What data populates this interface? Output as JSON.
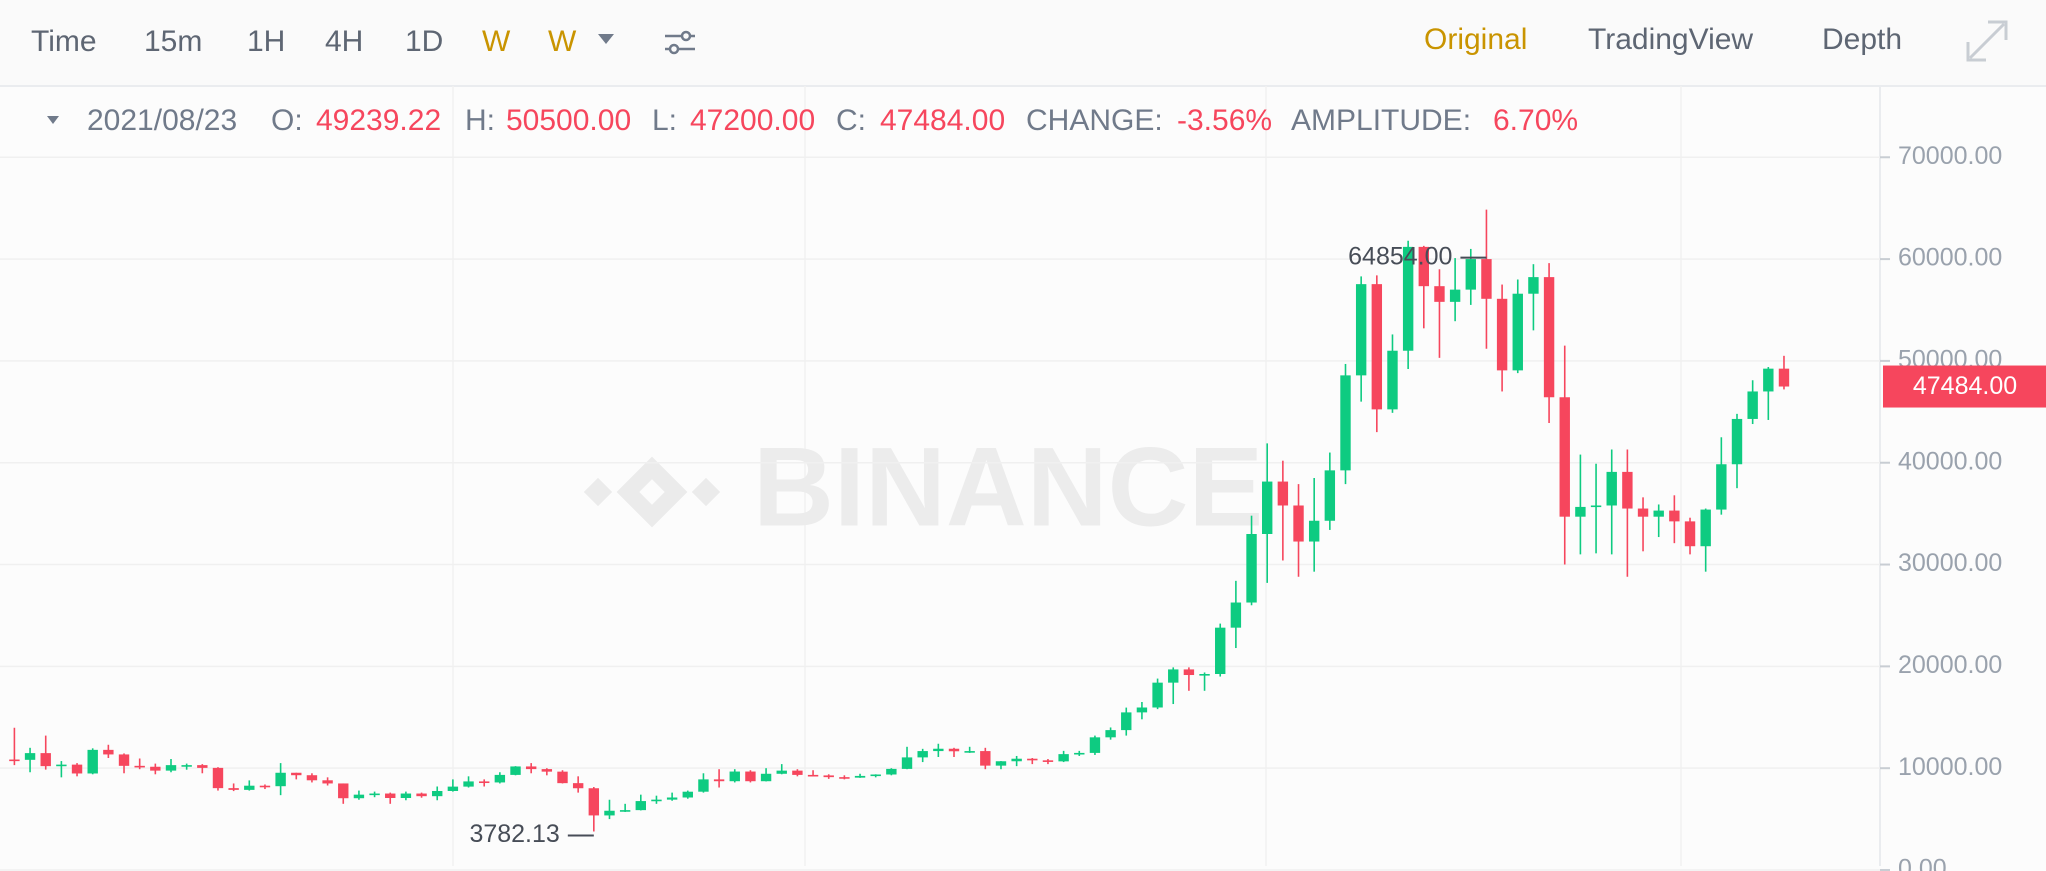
{
  "toolbar": {
    "left": [
      {
        "label": "Time",
        "active": false
      },
      {
        "label": "15m",
        "active": false
      },
      {
        "label": "1H",
        "active": false
      },
      {
        "label": "4H",
        "active": false
      },
      {
        "label": "1D",
        "active": false
      },
      {
        "label": "W",
        "active": true
      },
      {
        "label": "W",
        "active": true
      }
    ],
    "right": [
      {
        "label": "Original",
        "active": true
      },
      {
        "label": "TradingView",
        "active": false
      },
      {
        "label": "Depth",
        "active": false
      }
    ],
    "active_color": "#c99400"
  },
  "info": {
    "date": "2021/08/23",
    "fields": [
      {
        "label": "O:",
        "value": "49239.22"
      },
      {
        "label": "H:",
        "value": "50500.00"
      },
      {
        "label": "L:",
        "value": "47200.00"
      },
      {
        "label": "C:",
        "value": "47484.00"
      },
      {
        "label": "CHANGE:",
        "value": "-3.56%"
      },
      {
        "label": "AMPLITUDE:",
        "value": "6.70%"
      }
    ]
  },
  "chart_data": {
    "type": "candlestick",
    "watermark": "BINANCE",
    "up_color": "#0ecb81",
    "down_color": "#f6465d",
    "grid": true,
    "ylim": [
      0,
      77000
    ],
    "yticks": [
      {
        "value": 0,
        "label": "0.00"
      },
      {
        "value": 10000,
        "label": "10000.00"
      },
      {
        "value": 20000,
        "label": "20000.00"
      },
      {
        "value": 30000,
        "label": "30000.00"
      },
      {
        "value": 40000,
        "label": "40000.00"
      },
      {
        "value": 50000,
        "label": "50000.00"
      },
      {
        "value": 60000,
        "label": "60000.00"
      },
      {
        "value": 70000,
        "label": "70000.00"
      }
    ],
    "high_label": "64854.00",
    "low_label": "3782.13",
    "last_price_label": "47484.00",
    "open": [
      10850,
      10820,
      11480,
      10200,
      10350,
      9480,
      11800,
      11350,
      10230,
      10140,
      9760,
      10300,
      10300,
      10030,
      8040,
      7870,
      8280,
      8230,
      9550,
      9310,
      8810,
      8500,
      7050,
      7400,
      7510,
      7070,
      7510,
      7250,
      7760,
      8190,
      8700,
      8600,
      9340,
      10170,
      9910,
      9660,
      8530,
      8030,
      5360,
      5820,
      5880,
      6770,
      6910,
      7120,
      7690,
      8900,
      8720,
      9670,
      8720,
      9450,
      9760,
      9340,
      9290,
      9120,
      9070,
      9240,
      9380,
      9930,
      11060,
      11680,
      11910,
      11660,
      11680,
      10250,
      10680,
      10930,
      10770,
      10670,
      11380,
      11500,
      13030,
      13740,
      15480,
      15960,
      18400,
      19700,
      19150,
      19250,
      23800,
      26270,
      33000,
      38150,
      35800,
      32260,
      34300,
      39250,
      48580,
      57540,
      45240,
      51000,
      61200,
      57340,
      55800,
      57000,
      60000,
      56100,
      49070,
      56600,
      58230,
      46430,
      34700,
      35660,
      35800,
      39100,
      35500,
      34700,
      35300,
      34240,
      31800,
      35400,
      39850,
      44300,
      47000,
      49239.22
    ],
    "high": [
      13970,
      12000,
      13200,
      10700,
      10500,
      11950,
      12300,
      11450,
      10950,
      10450,
      10900,
      10450,
      10400,
      10100,
      8500,
      8800,
      8400,
      10500,
      9550,
      9500,
      9100,
      8500,
      7800,
      7700,
      7600,
      7700,
      7600,
      8200,
      8900,
      9200,
      8900,
      9600,
      10200,
      10500,
      10000,
      9800,
      9200,
      8150,
      6900,
      6500,
      7400,
      7300,
      7600,
      7800,
      9500,
      9900,
      9900,
      9800,
      10000,
      10400,
      9900,
      9800,
      9400,
      9300,
      9450,
      9400,
      10000,
      12100,
      11900,
      12400,
      12000,
      12100,
      12000,
      10700,
      11200,
      11000,
      10900,
      11700,
      11700,
      13200,
      14000,
      15950,
      16500,
      18800,
      19900,
      19900,
      19400,
      24200,
      28400,
      34800,
      41900,
      40200,
      37900,
      38500,
      41000,
      49700,
      58300,
      58400,
      52600,
      61800,
      61300,
      59000,
      60100,
      61000,
      64854,
      57500,
      58000,
      59500,
      59600,
      51500,
      40800,
      39900,
      41300,
      41300,
      36600,
      35900,
      36800,
      34600,
      35500,
      42500,
      44800,
      48100,
      49400,
      50500
    ],
    "low": [
      10300,
      9600,
      9860,
      9100,
      9200,
      9400,
      11000,
      9500,
      9900,
      9400,
      9600,
      9850,
      9500,
      7800,
      7750,
      7800,
      7950,
      7350,
      8900,
      8600,
      8300,
      6500,
      6900,
      7150,
      6500,
      6850,
      7100,
      6850,
      7700,
      8100,
      8200,
      8500,
      9300,
      9500,
      9300,
      8500,
      7600,
      3782.13,
      5000,
      5700,
      5850,
      6500,
      6800,
      7000,
      7600,
      8100,
      8600,
      8600,
      8700,
      9400,
      9200,
      9200,
      8950,
      8900,
      9050,
      9100,
      9300,
      9900,
      10600,
      11100,
      11100,
      11500,
      9900,
      9900,
      10200,
      10400,
      10400,
      10600,
      11200,
      11300,
      12800,
      13200,
      14800,
      15800,
      16300,
      17600,
      17600,
      19000,
      21800,
      26000,
      28200,
      30400,
      28800,
      29300,
      33400,
      37900,
      46000,
      43000,
      44900,
      49200,
      53200,
      50300,
      53900,
      55500,
      51200,
      47000,
      48800,
      53000,
      43900,
      30000,
      31000,
      31100,
      31000,
      28800,
      31300,
      32700,
      32100,
      31000,
      29300,
      34900,
      37500,
      43800,
      44200,
      47200
    ],
    "close": [
      10820,
      11480,
      10200,
      10350,
      9480,
      11800,
      11350,
      10230,
      10140,
      9760,
      10300,
      10300,
      10030,
      8040,
      7870,
      8280,
      8230,
      9550,
      9310,
      8810,
      8500,
      7050,
      7400,
      7510,
      7070,
      7510,
      7250,
      7760,
      8190,
      8700,
      8600,
      9340,
      10170,
      9910,
      9660,
      8530,
      8030,
      5360,
      5820,
      5880,
      6770,
      6910,
      7120,
      7690,
      8900,
      8720,
      9670,
      8720,
      9450,
      9760,
      9340,
      9290,
      9120,
      9070,
      9240,
      9380,
      9930,
      11060,
      11680,
      11910,
      11660,
      11680,
      10250,
      10680,
      10930,
      10770,
      10670,
      11380,
      11500,
      13030,
      13740,
      15480,
      15960,
      18400,
      19700,
      19150,
      19250,
      23800,
      26270,
      33000,
      38150,
      35800,
      32260,
      34300,
      39250,
      48580,
      57540,
      45240,
      51000,
      61200,
      57340,
      55800,
      57000,
      60000,
      56100,
      49070,
      56600,
      58230,
      46430,
      34700,
      35660,
      35800,
      39100,
      35500,
      34700,
      35300,
      34240,
      31800,
      35400,
      39850,
      44300,
      47000,
      49239.22,
      47484
    ]
  }
}
